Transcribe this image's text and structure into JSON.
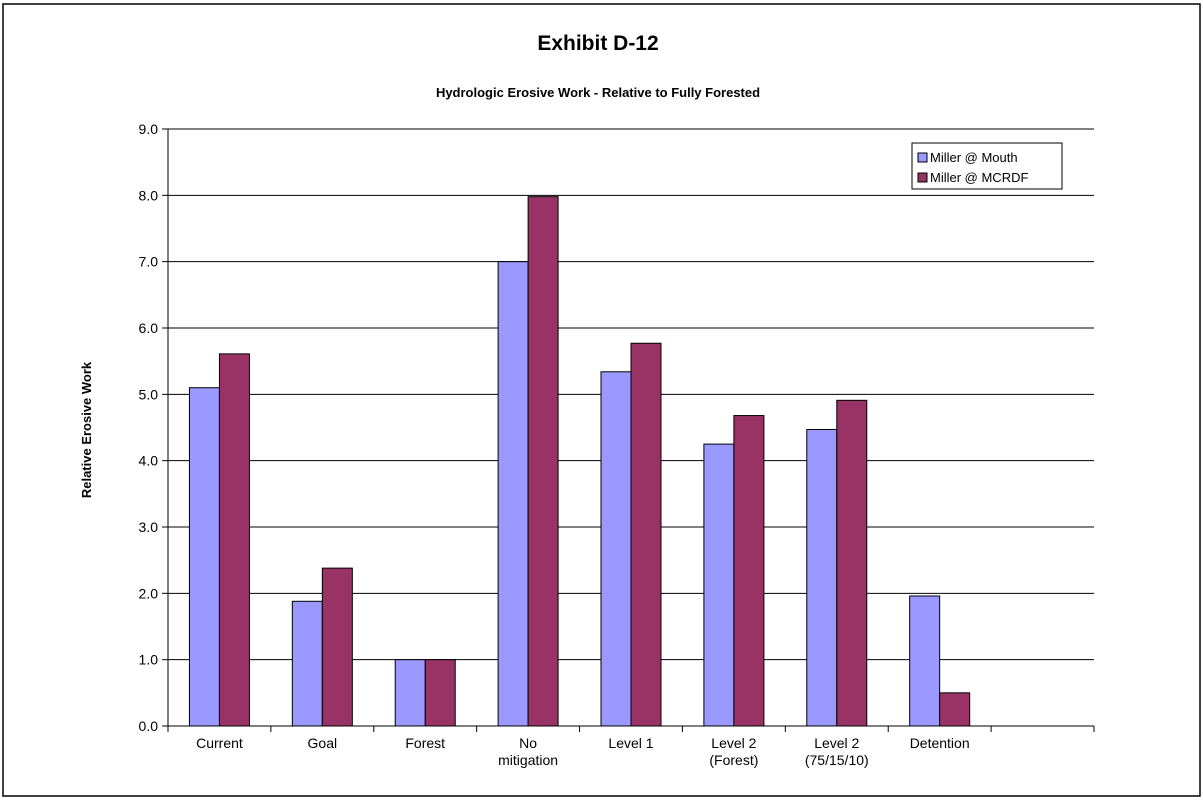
{
  "chart_data": {
    "type": "bar",
    "title": "Exhibit D-12",
    "subtitle": "Hydrologic Erosive Work - Relative to Fully Forested",
    "xlabel": "",
    "ylabel": "Relative Erosive Work",
    "ylim": [
      0,
      9
    ],
    "y_ticks": [
      "0.0",
      "1.0",
      "2.0",
      "3.0",
      "4.0",
      "5.0",
      "6.0",
      "7.0",
      "8.0",
      "9.0"
    ],
    "grid": true,
    "legend_position": "top-right",
    "categories": [
      [
        "Current"
      ],
      [
        "Goal"
      ],
      [
        "Forest"
      ],
      [
        "No",
        "mitigation"
      ],
      [
        "Level 1"
      ],
      [
        "Level 2",
        "(Forest)"
      ],
      [
        "Level 2",
        "(75/15/10)"
      ],
      [
        "Detention"
      ],
      [
        ""
      ]
    ],
    "series": [
      {
        "name": "Miller @ Mouth",
        "color": "#9999ff",
        "values": [
          5.1,
          1.88,
          1.0,
          7.0,
          5.34,
          4.25,
          4.47,
          1.96,
          null
        ]
      },
      {
        "name": "Miller @ MCRDF",
        "color": "#993366",
        "values": [
          5.61,
          2.38,
          1.0,
          7.98,
          5.77,
          4.68,
          4.91,
          0.5,
          null
        ]
      }
    ]
  }
}
